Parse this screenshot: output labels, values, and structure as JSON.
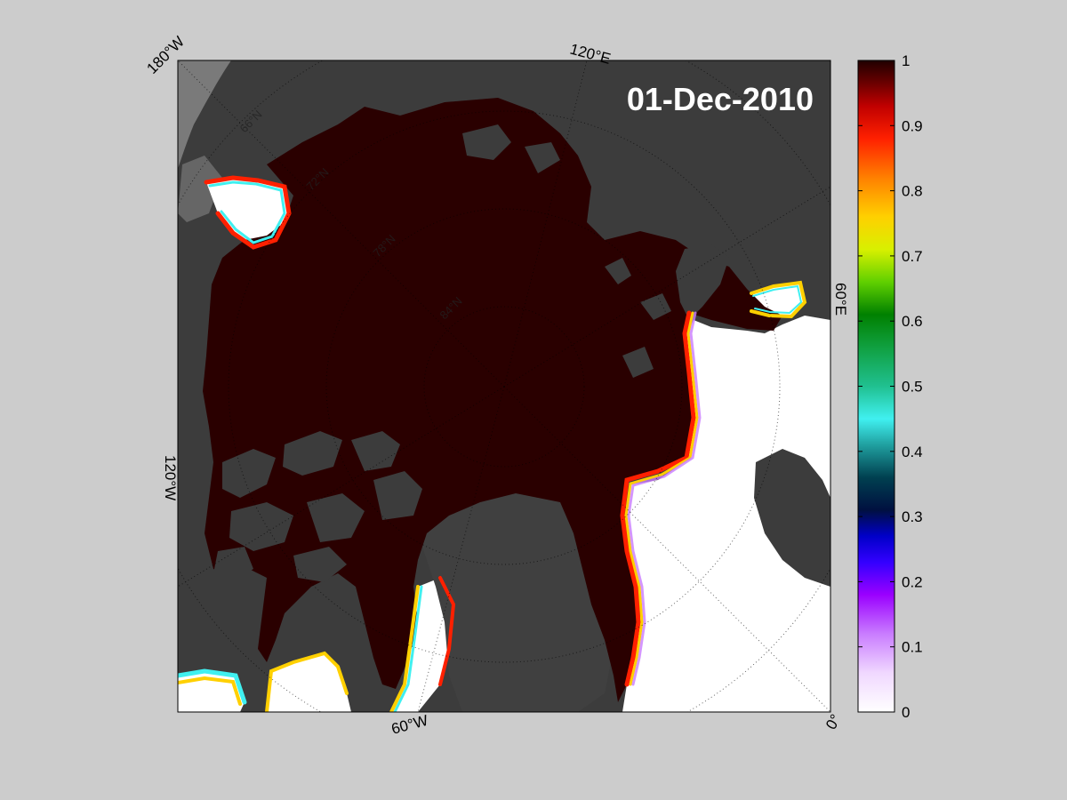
{
  "date_label": "01-Dec-2010",
  "longitude_labels": {
    "lon_180w": "180°W",
    "lon_120e": "120°E",
    "lon_60e": "60°E",
    "lon_120w": "120°W",
    "lon_60w": "60°W",
    "lon_0": "0°"
  },
  "latitude_labels": {
    "lat_66n": "66°N",
    "lat_72n": "72°N",
    "lat_78n": "78°N",
    "lat_84n": "84°N"
  },
  "colorbar": {
    "min": 0,
    "max": 1,
    "ticks": [
      "0",
      "0.1",
      "0.2",
      "0.3",
      "0.4",
      "0.5",
      "0.6",
      "0.7",
      "0.8",
      "0.9",
      "1"
    ]
  },
  "colors": {
    "page_background": "#cccccc",
    "land": "#3c3c3c",
    "outside_domain": "#7a7a7a",
    "open_water": "#ffffff",
    "high_concentration_ice": "#2a0000"
  }
}
